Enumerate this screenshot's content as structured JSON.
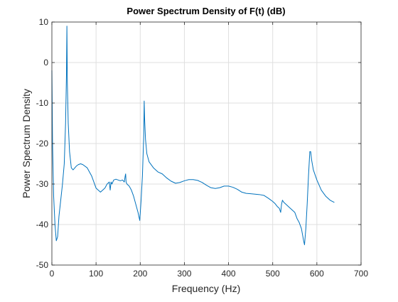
{
  "chart_data": {
    "type": "line",
    "title": "Power Spectrum Density of F(t) (dB)",
    "xlabel": "Frequency (Hz)",
    "ylabel": "Power Spectrum Density",
    "xlim": [
      0,
      700
    ],
    "ylim": [
      -50,
      10
    ],
    "xticks": [
      0,
      100,
      200,
      300,
      400,
      500,
      600,
      700
    ],
    "yticks": [
      -50,
      -40,
      -30,
      -20,
      -10,
      0,
      10
    ],
    "grid": true,
    "line_color": "#0072BD",
    "series": [
      {
        "x": [
          0,
          1.5,
          4,
          7,
          10,
          13,
          16,
          20,
          24,
          28,
          31,
          33,
          34,
          35,
          37,
          40,
          44,
          48,
          52,
          56,
          60,
          65,
          70,
          80,
          90,
          100,
          110,
          120,
          125,
          130,
          132,
          134,
          136,
          140,
          145,
          150,
          155,
          160,
          164,
          166,
          167,
          168,
          170,
          175,
          180,
          185,
          190,
          195,
          199,
          202,
          205,
          208,
          209,
          210,
          212,
          215,
          220,
          230,
          240,
          250,
          260,
          270,
          280,
          290,
          300,
          310,
          320,
          330,
          340,
          350,
          360,
          370,
          380,
          390,
          400,
          410,
          420,
          430,
          440,
          450,
          460,
          470,
          480,
          490,
          500,
          505,
          510,
          515,
          518,
          520,
          522,
          525,
          530,
          540,
          550,
          555,
          560,
          565,
          570,
          572,
          575,
          578,
          581,
          584,
          586,
          588,
          592,
          600,
          610,
          620,
          630,
          639
        ],
        "y": [
          -2,
          -20,
          -33,
          -40,
          -44,
          -43,
          -38,
          -34,
          -30,
          -25,
          -15,
          -3,
          9,
          -5,
          -15,
          -22,
          -26,
          -26.5,
          -26,
          -25.5,
          -25.2,
          -25,
          -25.2,
          -26,
          -28,
          -31,
          -32,
          -31,
          -30,
          -29.5,
          -31.5,
          -29.5,
          -30,
          -29,
          -28.8,
          -29,
          -29.2,
          -29,
          -29.5,
          -28,
          -27.5,
          -29.5,
          -30,
          -30.5,
          -31.5,
          -33,
          -35,
          -37,
          -39,
          -34,
          -28,
          -18,
          -9.5,
          -14,
          -19,
          -22.5,
          -24.5,
          -26,
          -27,
          -27.5,
          -28.5,
          -29.3,
          -29.8,
          -29.6,
          -29.2,
          -28.9,
          -28.9,
          -29.1,
          -29.6,
          -30.3,
          -30.9,
          -31.1,
          -30.9,
          -30.5,
          -30.5,
          -30.8,
          -31.3,
          -32.0,
          -32.3,
          -32.4,
          -32.5,
          -32.6,
          -32.8,
          -33.5,
          -34.3,
          -34.8,
          -35.5,
          -36,
          -37,
          -35,
          -34,
          -34.5,
          -35,
          -36,
          -37,
          -38.5,
          -39.5,
          -41,
          -44,
          -45,
          -41,
          -35,
          -28,
          -22,
          -22,
          -24,
          -26.5,
          -29,
          -31.5,
          -33,
          -34,
          -34.5
        ]
      }
    ]
  }
}
